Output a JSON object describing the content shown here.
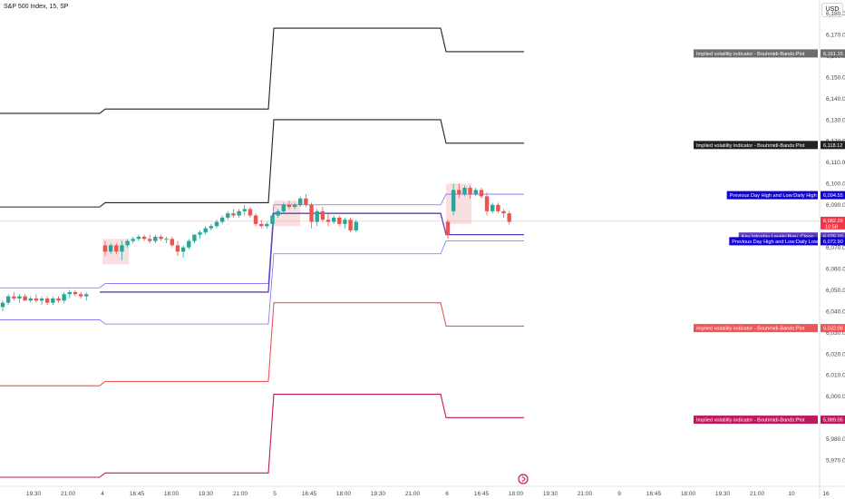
{
  "header": {
    "symbol_title": "S&P 500 Index, 15, SP",
    "currency": "USD"
  },
  "colors": {
    "up": "#26a69a",
    "down": "#ef5350",
    "blue_band": "#7b6ef6",
    "purple_level": "#5b3fbf",
    "grey_band": "#6d6d6d",
    "black_band": "#222222",
    "red_band": "#f05454",
    "crimson_band": "#c2185b",
    "blue_label": "#1200d6"
  },
  "chart_data": {
    "type": "candlestick",
    "title": "S&P 500 Index, 15, SP",
    "y_range": [
      5962,
      6182
    ],
    "y_ticks": [
      5970,
      5980,
      5990,
      6000,
      6010,
      6020,
      6030,
      6040,
      6050,
      6060,
      6070,
      6080,
      6090,
      6100,
      6110,
      6120,
      6130,
      6140,
      6150,
      6160,
      6170,
      6180
    ],
    "x_ticks": [
      "19:30",
      "21:00",
      "4",
      "16:45",
      "18:00",
      "19:30",
      "21:00",
      "5",
      "16:45",
      "18:00",
      "19:30",
      "21:00",
      "6",
      "16:45",
      "18:00",
      "19:30",
      "21:00",
      "9",
      "16:45",
      "18:00",
      "19:30",
      "21:00",
      "10",
      "16"
    ],
    "last_price": 6082.29,
    "countdown": "10:58",
    "candles": [
      {
        "o": 6042,
        "h": 6045,
        "l": 6040,
        "c": 6044
      },
      {
        "o": 6044,
        "h": 6048,
        "l": 6043,
        "c": 6047
      },
      {
        "o": 6047,
        "h": 6049,
        "l": 6045,
        "c": 6046
      },
      {
        "o": 6046,
        "h": 6048,
        "l": 6044,
        "c": 6047
      },
      {
        "o": 6047,
        "h": 6048,
        "l": 6045,
        "c": 6045
      },
      {
        "o": 6045,
        "h": 6047,
        "l": 6044,
        "c": 6046
      },
      {
        "o": 6046,
        "h": 6048,
        "l": 6044,
        "c": 6045
      },
      {
        "o": 6045,
        "h": 6047,
        "l": 6043,
        "c": 6046
      },
      {
        "o": 6046,
        "h": 6047,
        "l": 6043,
        "c": 6044
      },
      {
        "o": 6044,
        "h": 6047,
        "l": 6043,
        "c": 6046
      },
      {
        "o": 6046,
        "h": 6047,
        "l": 6044,
        "c": 6045
      },
      {
        "o": 6045,
        "h": 6049,
        "l": 6044,
        "c": 6048
      },
      {
        "o": 6048,
        "h": 6050,
        "l": 6046,
        "c": 6049
      },
      {
        "o": 6049,
        "h": 6050,
        "l": 6047,
        "c": 6048
      },
      {
        "o": 6048,
        "h": 6049,
        "l": 6046,
        "c": 6047
      },
      {
        "o": 6047,
        "h": 6049,
        "l": 6045,
        "c": 6048
      },
      {
        "o": 6071,
        "h": 6073,
        "l": 6066,
        "c": 6068
      },
      {
        "o": 6068,
        "h": 6072,
        "l": 6067,
        "c": 6071
      },
      {
        "o": 6071,
        "h": 6072,
        "l": 6067,
        "c": 6068
      },
      {
        "o": 6068,
        "h": 6073,
        "l": 6064,
        "c": 6071
      },
      {
        "o": 6071,
        "h": 6074,
        "l": 6070,
        "c": 6073
      },
      {
        "o": 6073,
        "h": 6075,
        "l": 6072,
        "c": 6074
      },
      {
        "o": 6074,
        "h": 6076,
        "l": 6073,
        "c": 6075
      },
      {
        "o": 6075,
        "h": 6076,
        "l": 6073,
        "c": 6074
      },
      {
        "o": 6074,
        "h": 6076,
        "l": 6072,
        "c": 6073
      },
      {
        "o": 6073,
        "h": 6076,
        "l": 6072,
        "c": 6075
      },
      {
        "o": 6075,
        "h": 6076,
        "l": 6073,
        "c": 6074
      },
      {
        "o": 6074,
        "h": 6075,
        "l": 6072,
        "c": 6074
      },
      {
        "o": 6074,
        "h": 6075,
        "l": 6070,
        "c": 6071
      },
      {
        "o": 6071,
        "h": 6073,
        "l": 6066,
        "c": 6068
      },
      {
        "o": 6068,
        "h": 6071,
        "l": 6065,
        "c": 6070
      },
      {
        "o": 6070,
        "h": 6074,
        "l": 6069,
        "c": 6073
      },
      {
        "o": 6073,
        "h": 6076,
        "l": 6072,
        "c": 6076
      },
      {
        "o": 6076,
        "h": 6078,
        "l": 6074,
        "c": 6077
      },
      {
        "o": 6077,
        "h": 6080,
        "l": 6076,
        "c": 6079
      },
      {
        "o": 6079,
        "h": 6081,
        "l": 6078,
        "c": 6080
      },
      {
        "o": 6080,
        "h": 6083,
        "l": 6079,
        "c": 6082
      },
      {
        "o": 6082,
        "h": 6085,
        "l": 6081,
        "c": 6084
      },
      {
        "o": 6084,
        "h": 6087,
        "l": 6083,
        "c": 6086
      },
      {
        "o": 6086,
        "h": 6088,
        "l": 6084,
        "c": 6085
      },
      {
        "o": 6085,
        "h": 6088,
        "l": 6084,
        "c": 6087
      },
      {
        "o": 6087,
        "h": 6090,
        "l": 6085,
        "c": 6088
      },
      {
        "o": 6088,
        "h": 6089,
        "l": 6084,
        "c": 6085
      },
      {
        "o": 6085,
        "h": 6086,
        "l": 6080,
        "c": 6081
      },
      {
        "o": 6081,
        "h": 6083,
        "l": 6079,
        "c": 6080
      },
      {
        "o": 6080,
        "h": 6082,
        "l": 6079,
        "c": 6081
      },
      {
        "o": 6081,
        "h": 6086,
        "l": 6080,
        "c": 6085
      },
      {
        "o": 6085,
        "h": 6088,
        "l": 6084,
        "c": 6087
      },
      {
        "o": 6087,
        "h": 6091,
        "l": 6086,
        "c": 6090
      },
      {
        "o": 6090,
        "h": 6092,
        "l": 6088,
        "c": 6089
      },
      {
        "o": 6089,
        "h": 6091,
        "l": 6088,
        "c": 6090
      },
      {
        "o": 6090,
        "h": 6094,
        "l": 6089,
        "c": 6093
      },
      {
        "o": 6093,
        "h": 6095,
        "l": 6089,
        "c": 6090
      },
      {
        "o": 6090,
        "h": 6091,
        "l": 6079,
        "c": 6082
      },
      {
        "o": 6082,
        "h": 6088,
        "l": 6080,
        "c": 6087
      },
      {
        "o": 6087,
        "h": 6089,
        "l": 6082,
        "c": 6083
      },
      {
        "o": 6083,
        "h": 6086,
        "l": 6080,
        "c": 6082
      },
      {
        "o": 6082,
        "h": 6085,
        "l": 6081,
        "c": 6084
      },
      {
        "o": 6084,
        "h": 6085,
        "l": 6080,
        "c": 6081
      },
      {
        "o": 6081,
        "h": 6084,
        "l": 6079,
        "c": 6083
      },
      {
        "o": 6083,
        "h": 6084,
        "l": 6077,
        "c": 6078
      },
      {
        "o": 6078,
        "h": 6083,
        "l": 6077,
        "c": 6082
      },
      {
        "o": 6082,
        "h": 6083,
        "l": 6074,
        "c": 6076
      },
      {
        "o": 6087,
        "h": 6100,
        "l": 6085,
        "c": 6097
      },
      {
        "o": 6097,
        "h": 6100,
        "l": 6093,
        "c": 6095
      },
      {
        "o": 6095,
        "h": 6099,
        "l": 6094,
        "c": 6098
      },
      {
        "o": 6098,
        "h": 6099,
        "l": 6093,
        "c": 6095
      },
      {
        "o": 6095,
        "h": 6098,
        "l": 6094,
        "c": 6097
      },
      {
        "o": 6097,
        "h": 6098,
        "l": 6093,
        "c": 6094
      },
      {
        "o": 6094,
        "h": 6096,
        "l": 6085,
        "c": 6087
      },
      {
        "o": 6087,
        "h": 6091,
        "l": 6086,
        "c": 6090
      },
      {
        "o": 6090,
        "h": 6091,
        "l": 6086,
        "c": 6087
      },
      {
        "o": 6087,
        "h": 6088,
        "l": 6084,
        "c": 6086
      },
      {
        "o": 6086,
        "h": 6087,
        "l": 6081,
        "c": 6082
      }
    ],
    "bands": [
      {
        "name": "Implied volatility indicator - Bouhmidi-Bands:Plot",
        "color": "#222222",
        "width": 1.1,
        "pts": [
          [
            0,
            6133
          ],
          [
            110,
            6133
          ],
          [
            116,
            6135
          ],
          [
            296,
            6135
          ],
          [
            302,
            6173
          ],
          [
            486,
            6173
          ],
          [
            492,
            6162
          ],
          [
            578,
            6162
          ]
        ]
      },
      {
        "name": "Implied volatility indicator - Bouhmidi-Bands:Plot",
        "color": "#222222",
        "width": 1.1,
        "pts": [
          [
            0,
            6089
          ],
          [
            110,
            6089
          ],
          [
            116,
            6091
          ],
          [
            296,
            6091
          ],
          [
            302,
            6130
          ],
          [
            486,
            6130
          ],
          [
            492,
            6119
          ],
          [
            578,
            6119
          ]
        ]
      },
      {
        "name": "Previous Day High and Low:Daily High",
        "color": "#7b6ef6",
        "width": 0.8,
        "pts": [
          [
            0,
            6051
          ],
          [
            110,
            6051
          ],
          [
            116,
            6053
          ],
          [
            296,
            6053
          ],
          [
            302,
            6090
          ],
          [
            486,
            6090
          ],
          [
            492,
            6095
          ],
          [
            578,
            6095
          ]
        ]
      },
      {
        "name": "Key Intraday Levels:Prev. Close",
        "color": "#5b3fbf",
        "width": 1.3,
        "pts": [
          [
            110,
            6049
          ],
          [
            296,
            6049
          ],
          [
            302,
            6086
          ],
          [
            486,
            6086
          ],
          [
            492,
            6076
          ],
          [
            578,
            6076
          ]
        ]
      },
      {
        "name": "Previous Day High and Low:Daily Low",
        "color": "#7b6ef6",
        "width": 0.8,
        "pts": [
          [
            0,
            6036
          ],
          [
            110,
            6036
          ],
          [
            116,
            6034
          ],
          [
            296,
            6034
          ],
          [
            302,
            6067
          ],
          [
            486,
            6067
          ],
          [
            492,
            6073
          ],
          [
            578,
            6073
          ]
        ]
      },
      {
        "name": "Implied volatility indicator - Bouhmidi-Bands:Plot",
        "color": "#f05454",
        "width": 1.1,
        "pts": [
          [
            0,
            6005
          ],
          [
            110,
            6005
          ],
          [
            116,
            6007
          ],
          [
            296,
            6007
          ],
          [
            302,
            6044
          ],
          [
            486,
            6044
          ],
          [
            492,
            6033
          ],
          [
            578,
            6033
          ]
        ]
      },
      {
        "name": "Implied volatility indicator - Bouhmidi-Bands:Plot",
        "color": "#c2185b",
        "width": 1.1,
        "pts": [
          [
            0,
            5962
          ],
          [
            110,
            5962
          ],
          [
            116,
            5964
          ],
          [
            296,
            5964
          ],
          [
            302,
            6001
          ],
          [
            486,
            6001
          ],
          [
            492,
            5990
          ],
          [
            578,
            5990
          ]
        ]
      }
    ],
    "zones": [
      {
        "x0": 113,
        "x1": 142,
        "y0": 6062,
        "y1": 6074
      },
      {
        "x0": 302,
        "x1": 331,
        "y0": 6080,
        "y1": 6092
      },
      {
        "x0": 492,
        "x1": 520,
        "y0": 6081,
        "y1": 6100
      }
    ],
    "right_labels": [
      {
        "text": "Implied volatility indicator - Bouhmidi-Bands:Plot",
        "value": "6,161.15",
        "price": 6161.15,
        "bg": "#6d6d6d"
      },
      {
        "text": "Implied volatility indicator - Bouhmidi-Bands:Plot",
        "value": "6,118.12",
        "price": 6118.12,
        "bg": "#222222"
      },
      {
        "text": "Previous Day High and Low:Daily High",
        "value": "6,094.55",
        "price": 6094.55,
        "bg": "#1200d6"
      },
      {
        "text": "Key Intraday Levels:Prev. Close",
        "value": "6,075.10",
        "price": 6075.1,
        "bg": "#5b3fbf"
      },
      {
        "text": "Previous Day High and Low:Daily Low",
        "value": "6,072.90",
        "price": 6072.9,
        "bg": "#1200d6"
      },
      {
        "text": "Implied volatility indicator - Bouhmidi-Bands:Plot",
        "value": "6,032.08",
        "price": 6032.08,
        "bg": "#f05454"
      },
      {
        "text": "Implied volatility indicator - Bouhmidi-Bands:Plot",
        "value": "5,989.05",
        "price": 5989.05,
        "bg": "#c2185b"
      }
    ],
    "price_label": {
      "value": "6,082.29",
      "countdown": "10:58",
      "bg": "#f23645"
    }
  }
}
